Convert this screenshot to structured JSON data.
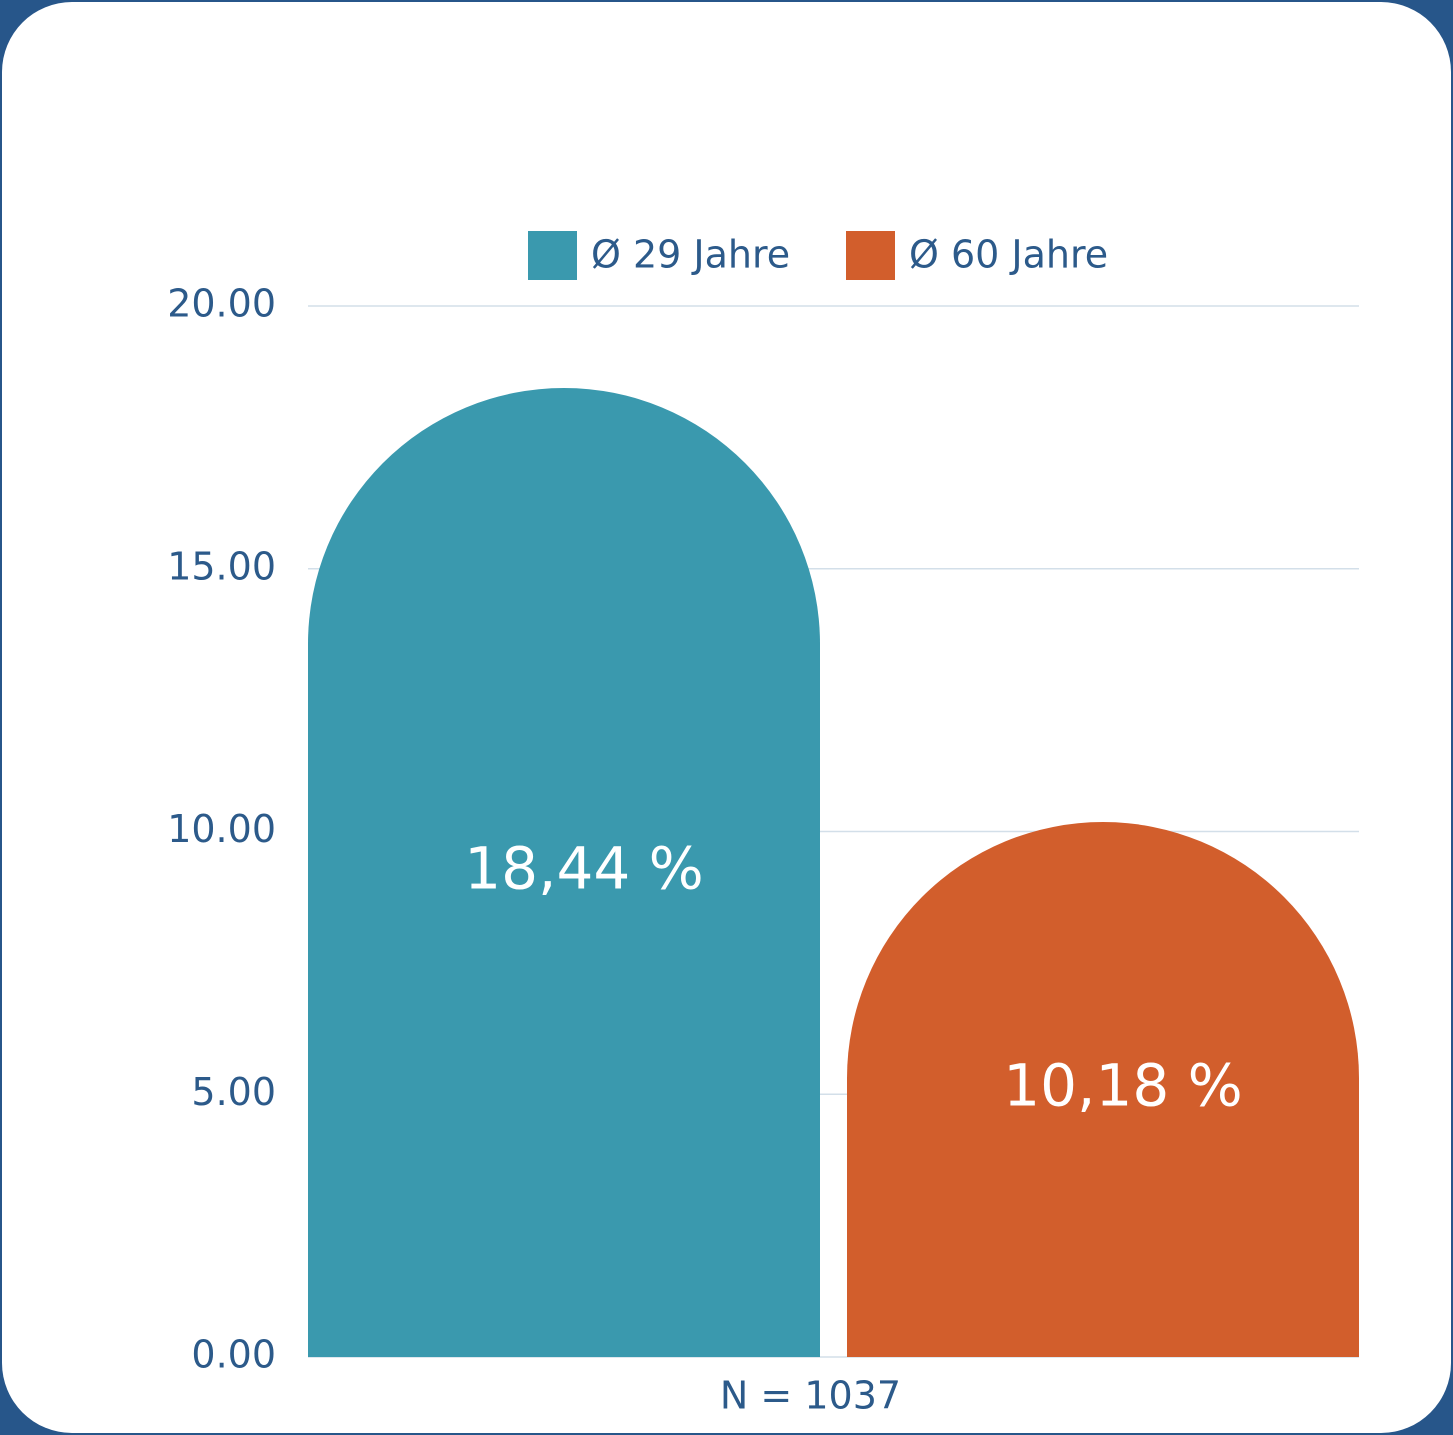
{
  "chart_data": {
    "type": "bar",
    "categories": [
      "N = 1037"
    ],
    "series": [
      {
        "name": "Ø 29 Jahre",
        "color": "#3a99ae",
        "values": [
          18.44
        ],
        "value_labels": [
          "18,44 %"
        ]
      },
      {
        "name": "Ø 60 Jahre",
        "color": "#d25e2c",
        "values": [
          10.18
        ],
        "value_labels": [
          "10,18 %"
        ]
      }
    ],
    "ylim": [
      0,
      20
    ],
    "yticks": [
      {
        "value": 0,
        "label": "0.00"
      },
      {
        "value": 5,
        "label": "5.00"
      },
      {
        "value": 10,
        "label": "10.00"
      },
      {
        "value": 15,
        "label": "15.00"
      },
      {
        "value": 20,
        "label": "20.00"
      }
    ],
    "grid": true,
    "legend": "top"
  }
}
